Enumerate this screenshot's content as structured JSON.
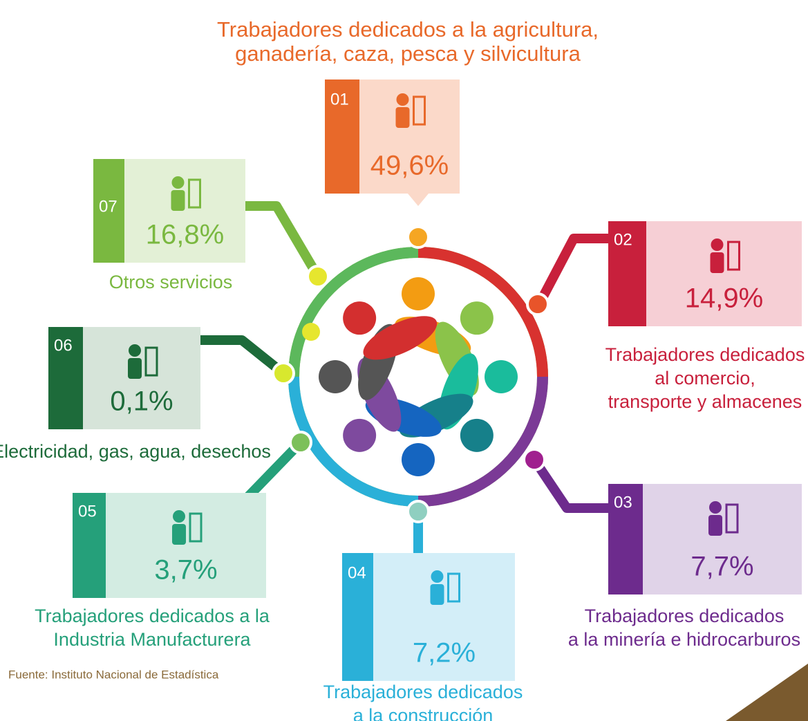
{
  "title": [
    "Trabajadores dedicados a la agricultura,",
    "ganadería, caza, pesca y silvicultura"
  ],
  "items": [
    {
      "number": "01",
      "value": "49,6%",
      "label": []
    },
    {
      "number": "02",
      "value": "14,9%",
      "label": [
        "Trabajadores dedicados",
        "al comercio,",
        "transporte y almacenes"
      ]
    },
    {
      "number": "03",
      "value": "7,7%",
      "label": [
        "Trabajadores dedicados",
        "a la minería e hidrocarburos"
      ]
    },
    {
      "number": "04",
      "value": "7,2%",
      "label": [
        "Trabajadores dedicados",
        "a la construcción"
      ]
    },
    {
      "number": "05",
      "value": "3,7%",
      "label": [
        "Trabajadores dedicados a la",
        "Industria Manufacturera"
      ]
    },
    {
      "number": "06",
      "value": "0,1%",
      "label": [
        "Electricidad, gas, agua, desechos"
      ]
    },
    {
      "number": "07",
      "value": "16,8%",
      "label": [
        "Otros servicios"
      ]
    }
  ],
  "source": "Fuente: Instituto Nacional de Estadística"
}
